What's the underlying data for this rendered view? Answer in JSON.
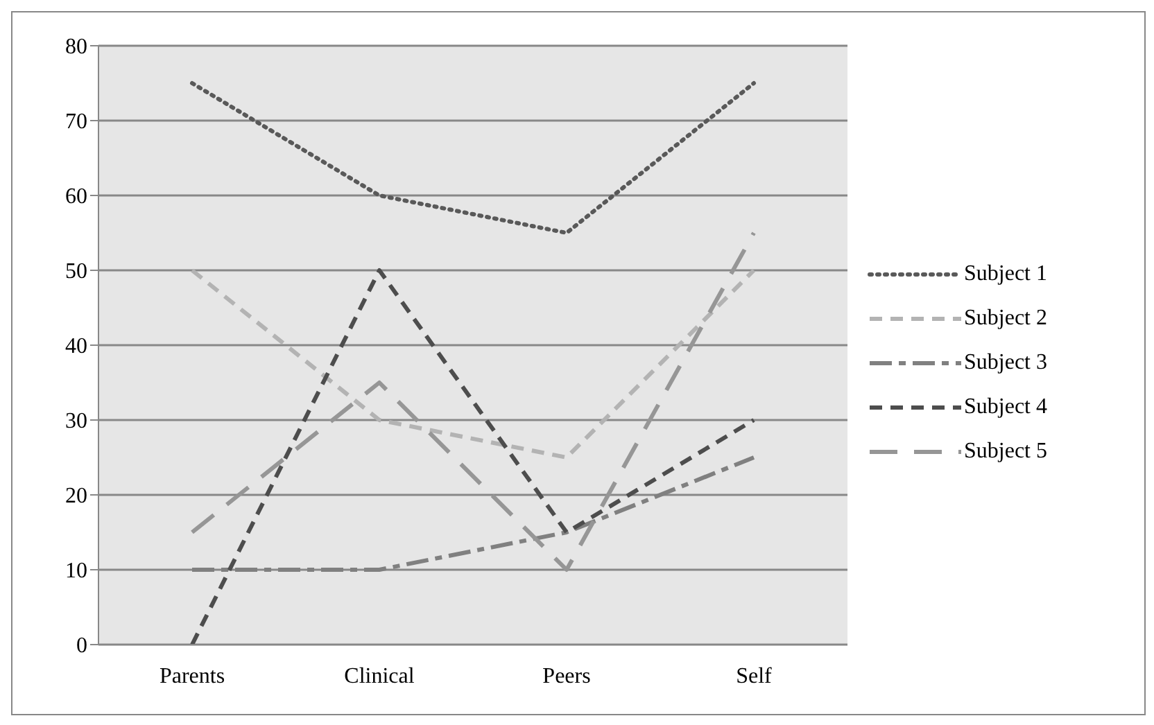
{
  "chart_data": {
    "type": "line",
    "categories": [
      "Parents",
      "Clinical",
      "Peers",
      "Self"
    ],
    "series": [
      {
        "name": "Subject 1",
        "color": "#595959",
        "line_style": "dotted",
        "values": [
          75,
          60,
          55,
          75
        ]
      },
      {
        "name": "Subject 2",
        "color": "#b3b3b3",
        "line_style": "dashed",
        "values": [
          50,
          30,
          25,
          50
        ]
      },
      {
        "name": "Subject 3",
        "color": "#808080",
        "line_style": "dashdot",
        "values": [
          10,
          10,
          15,
          25
        ]
      },
      {
        "name": "Subject 4",
        "color": "#4d4d4d",
        "line_style": "dashed",
        "values": [
          0,
          50,
          15,
          30
        ]
      },
      {
        "name": "Subject 5",
        "color": "#969696",
        "line_style": "longdash",
        "values": [
          15,
          35,
          10,
          55
        ]
      }
    ],
    "ylim": [
      0,
      80
    ],
    "yticks": [
      0,
      10,
      20,
      30,
      40,
      50,
      60,
      70,
      80
    ],
    "grid": "y",
    "legend": "right",
    "marker": "none"
  }
}
